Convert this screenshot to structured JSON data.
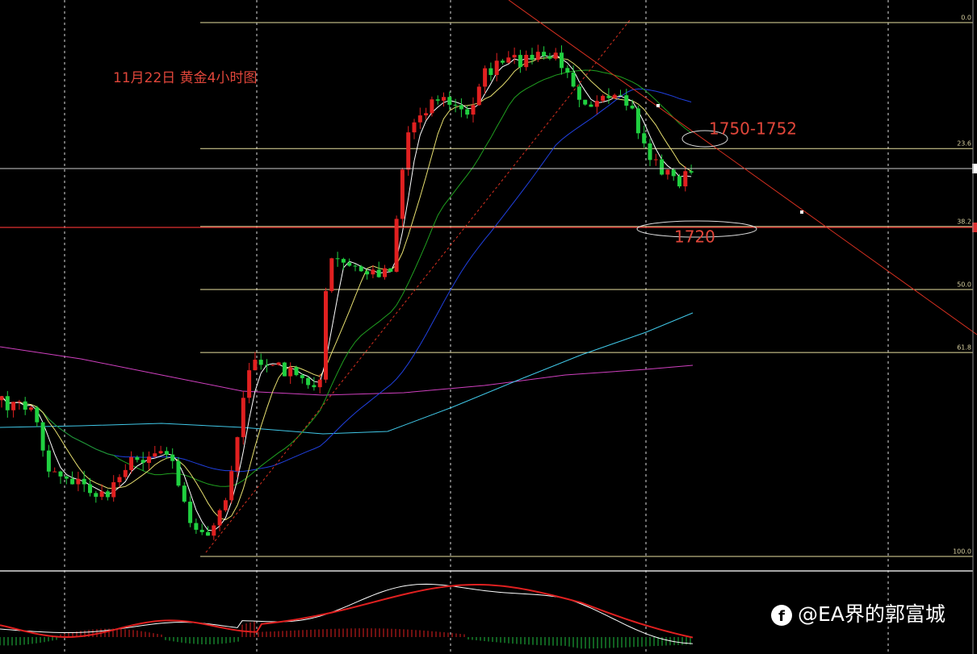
{
  "title": "11月22日 黄金4小时图",
  "annotations": [
    "1750-1752",
    "1720"
  ],
  "fib_levels": [
    {
      "value": 0,
      "label": "0.0"
    },
    {
      "value": 23.6,
      "label": "23.6"
    },
    {
      "value": 38.2,
      "label": "38.2"
    },
    {
      "value": 50,
      "label": "50.0"
    },
    {
      "value": 61.8,
      "label": "61.8"
    },
    {
      "value": 100,
      "label": "100.0"
    }
  ],
  "watermark": "@EA界的郭富城"
}
